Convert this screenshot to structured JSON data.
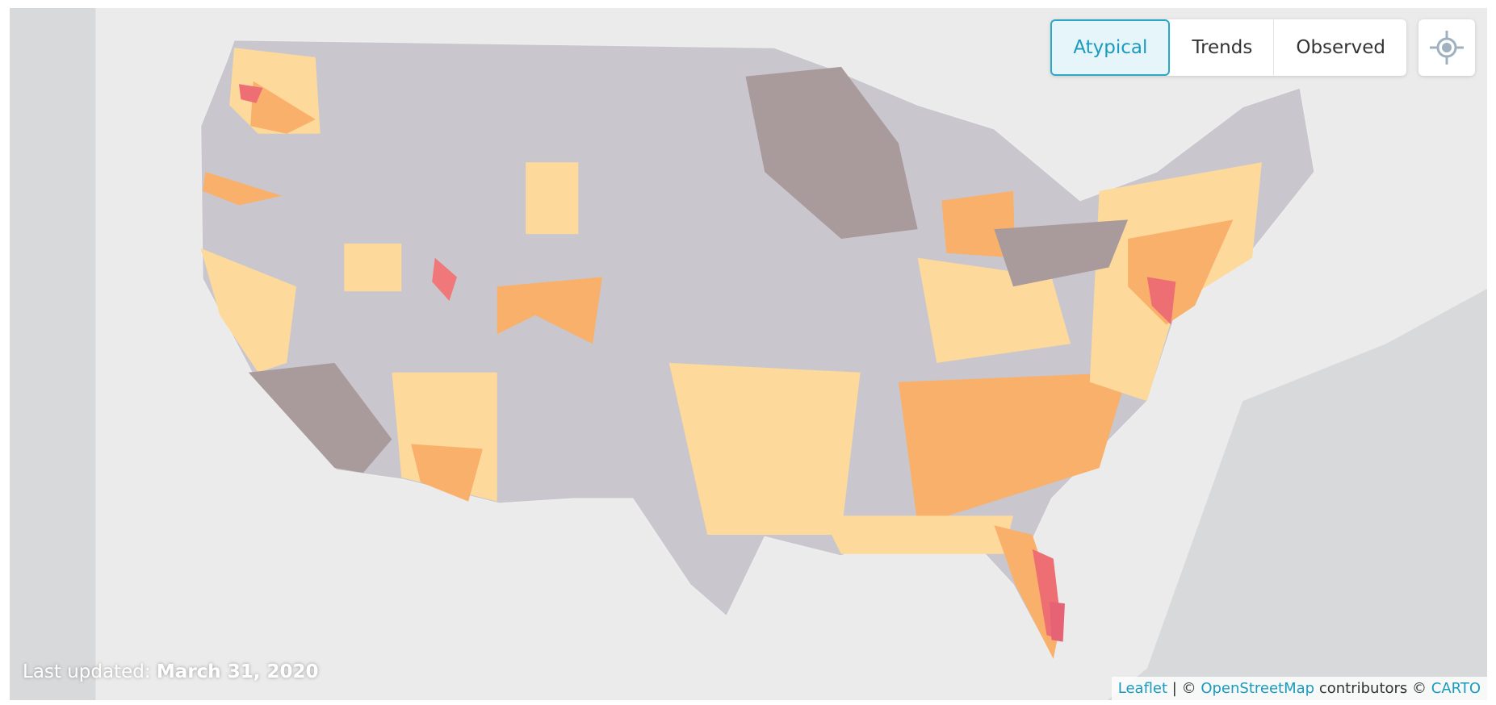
{
  "toggle": {
    "options": [
      "Atypical",
      "Trends",
      "Observed"
    ],
    "selected": 0
  },
  "status": {
    "label": "Last updated:",
    "date": "March 31, 2020"
  },
  "attribution": {
    "leaflet": "Leaflet",
    "separator": "|",
    "copyright": "©",
    "osm": "OpenStreetMap",
    "contributors": "contributors ©",
    "carto": "CARTO"
  }
}
